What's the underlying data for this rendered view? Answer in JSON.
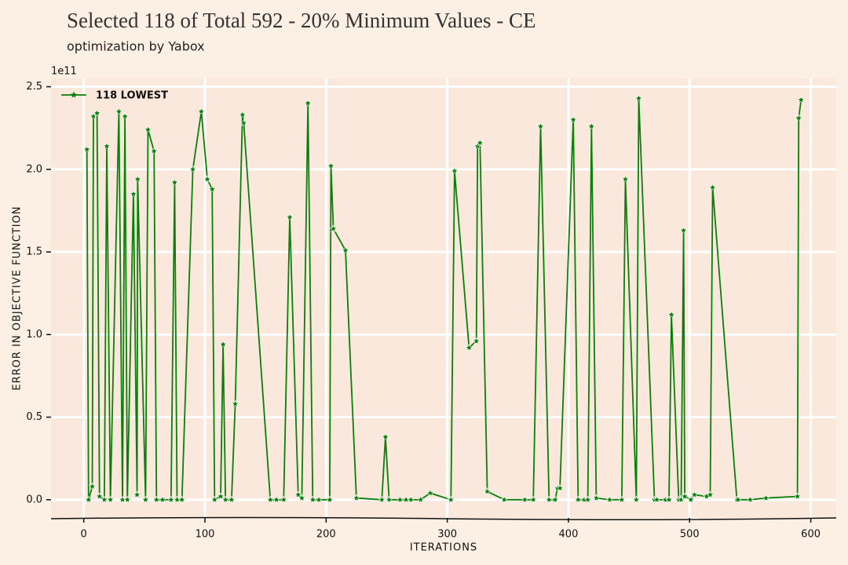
{
  "chart_data": {
    "type": "line",
    "title": "Selected 118 of Total 592  - 20% Minimum Values - CE",
    "subtitle": "optimization by Yabox",
    "x_label": "ITERATIONS",
    "y_label": "ERROR IN OBJECTIVE FUNCTION",
    "y_offset_label": "1e11",
    "x": [
      2.6,
      4,
      7,
      8,
      11,
      13,
      17,
      19,
      22,
      29,
      32,
      34,
      36,
      41,
      44,
      44.5,
      51,
      53,
      58,
      60,
      65,
      72,
      75,
      77,
      81,
      90,
      97,
      102,
      106,
      108,
      113,
      115,
      117,
      122,
      125,
      131,
      132,
      154,
      159,
      165,
      170,
      177,
      180,
      185,
      189,
      194,
      203,
      204,
      206,
      216,
      225,
      246,
      249,
      252,
      261,
      266,
      270,
      278,
      286,
      303,
      306,
      318,
      324,
      325,
      327,
      333,
      347,
      364,
      371,
      377,
      384,
      389,
      391,
      393,
      404,
      408,
      413,
      416,
      419,
      423,
      434,
      444,
      447,
      456,
      458,
      471,
      473,
      480,
      483,
      485,
      491,
      493,
      495,
      496,
      501,
      504,
      514,
      517,
      519,
      539,
      540,
      550,
      563,
      589,
      590,
      592
    ],
    "series": [
      {
        "name": "118 LOWEST",
        "color": "#0a7f0a",
        "values": [
          2.12,
          0,
          0.08,
          2.32,
          2.34,
          0.02,
          0,
          2.14,
          0,
          2.35,
          0,
          2.32,
          0,
          1.85,
          0.03,
          1.94,
          0,
          2.24,
          2.11,
          0,
          0,
          0,
          1.92,
          0,
          0,
          2.0,
          2.35,
          1.94,
          1.88,
          0,
          0.02,
          0.94,
          0,
          0,
          0.58,
          2.33,
          2.28,
          0,
          0,
          0,
          1.71,
          0.03,
          0.01,
          2.4,
          0,
          0,
          0,
          2.02,
          1.64,
          1.51,
          0.01,
          0,
          0.38,
          0,
          0,
          0,
          0,
          0,
          0.04,
          0,
          1.99,
          0.92,
          0.96,
          2.14,
          2.16,
          0.05,
          0,
          0,
          0,
          2.26,
          0,
          0,
          0.07,
          0.07,
          2.3,
          0,
          0,
          0,
          2.26,
          0.01,
          0,
          0,
          1.94,
          0,
          2.43,
          0,
          0,
          0,
          0,
          1.12,
          0,
          0,
          1.63,
          0.02,
          0,
          0.03,
          0.02,
          0.03,
          1.89,
          0,
          0,
          0,
          0.01,
          0.02,
          2.31,
          2.42
        ]
      }
    ],
    "xlim": [
      -27,
      621
    ],
    "ylim": [
      -0.11,
      2.55
    ],
    "xticks": [
      0,
      100,
      200,
      300,
      400,
      500,
      600
    ],
    "yticks": [
      {
        "value": 0,
        "label": "0.0"
      },
      {
        "value": 0.5,
        "label": "0.5"
      },
      {
        "value": 1,
        "label": "1.0"
      },
      {
        "value": 1.5,
        "label": "1.5"
      },
      {
        "value": 2,
        "label": "2.0"
      },
      {
        "value": 2.5,
        "label": "2.5"
      }
    ],
    "grid": true,
    "legend": "upper left"
  }
}
